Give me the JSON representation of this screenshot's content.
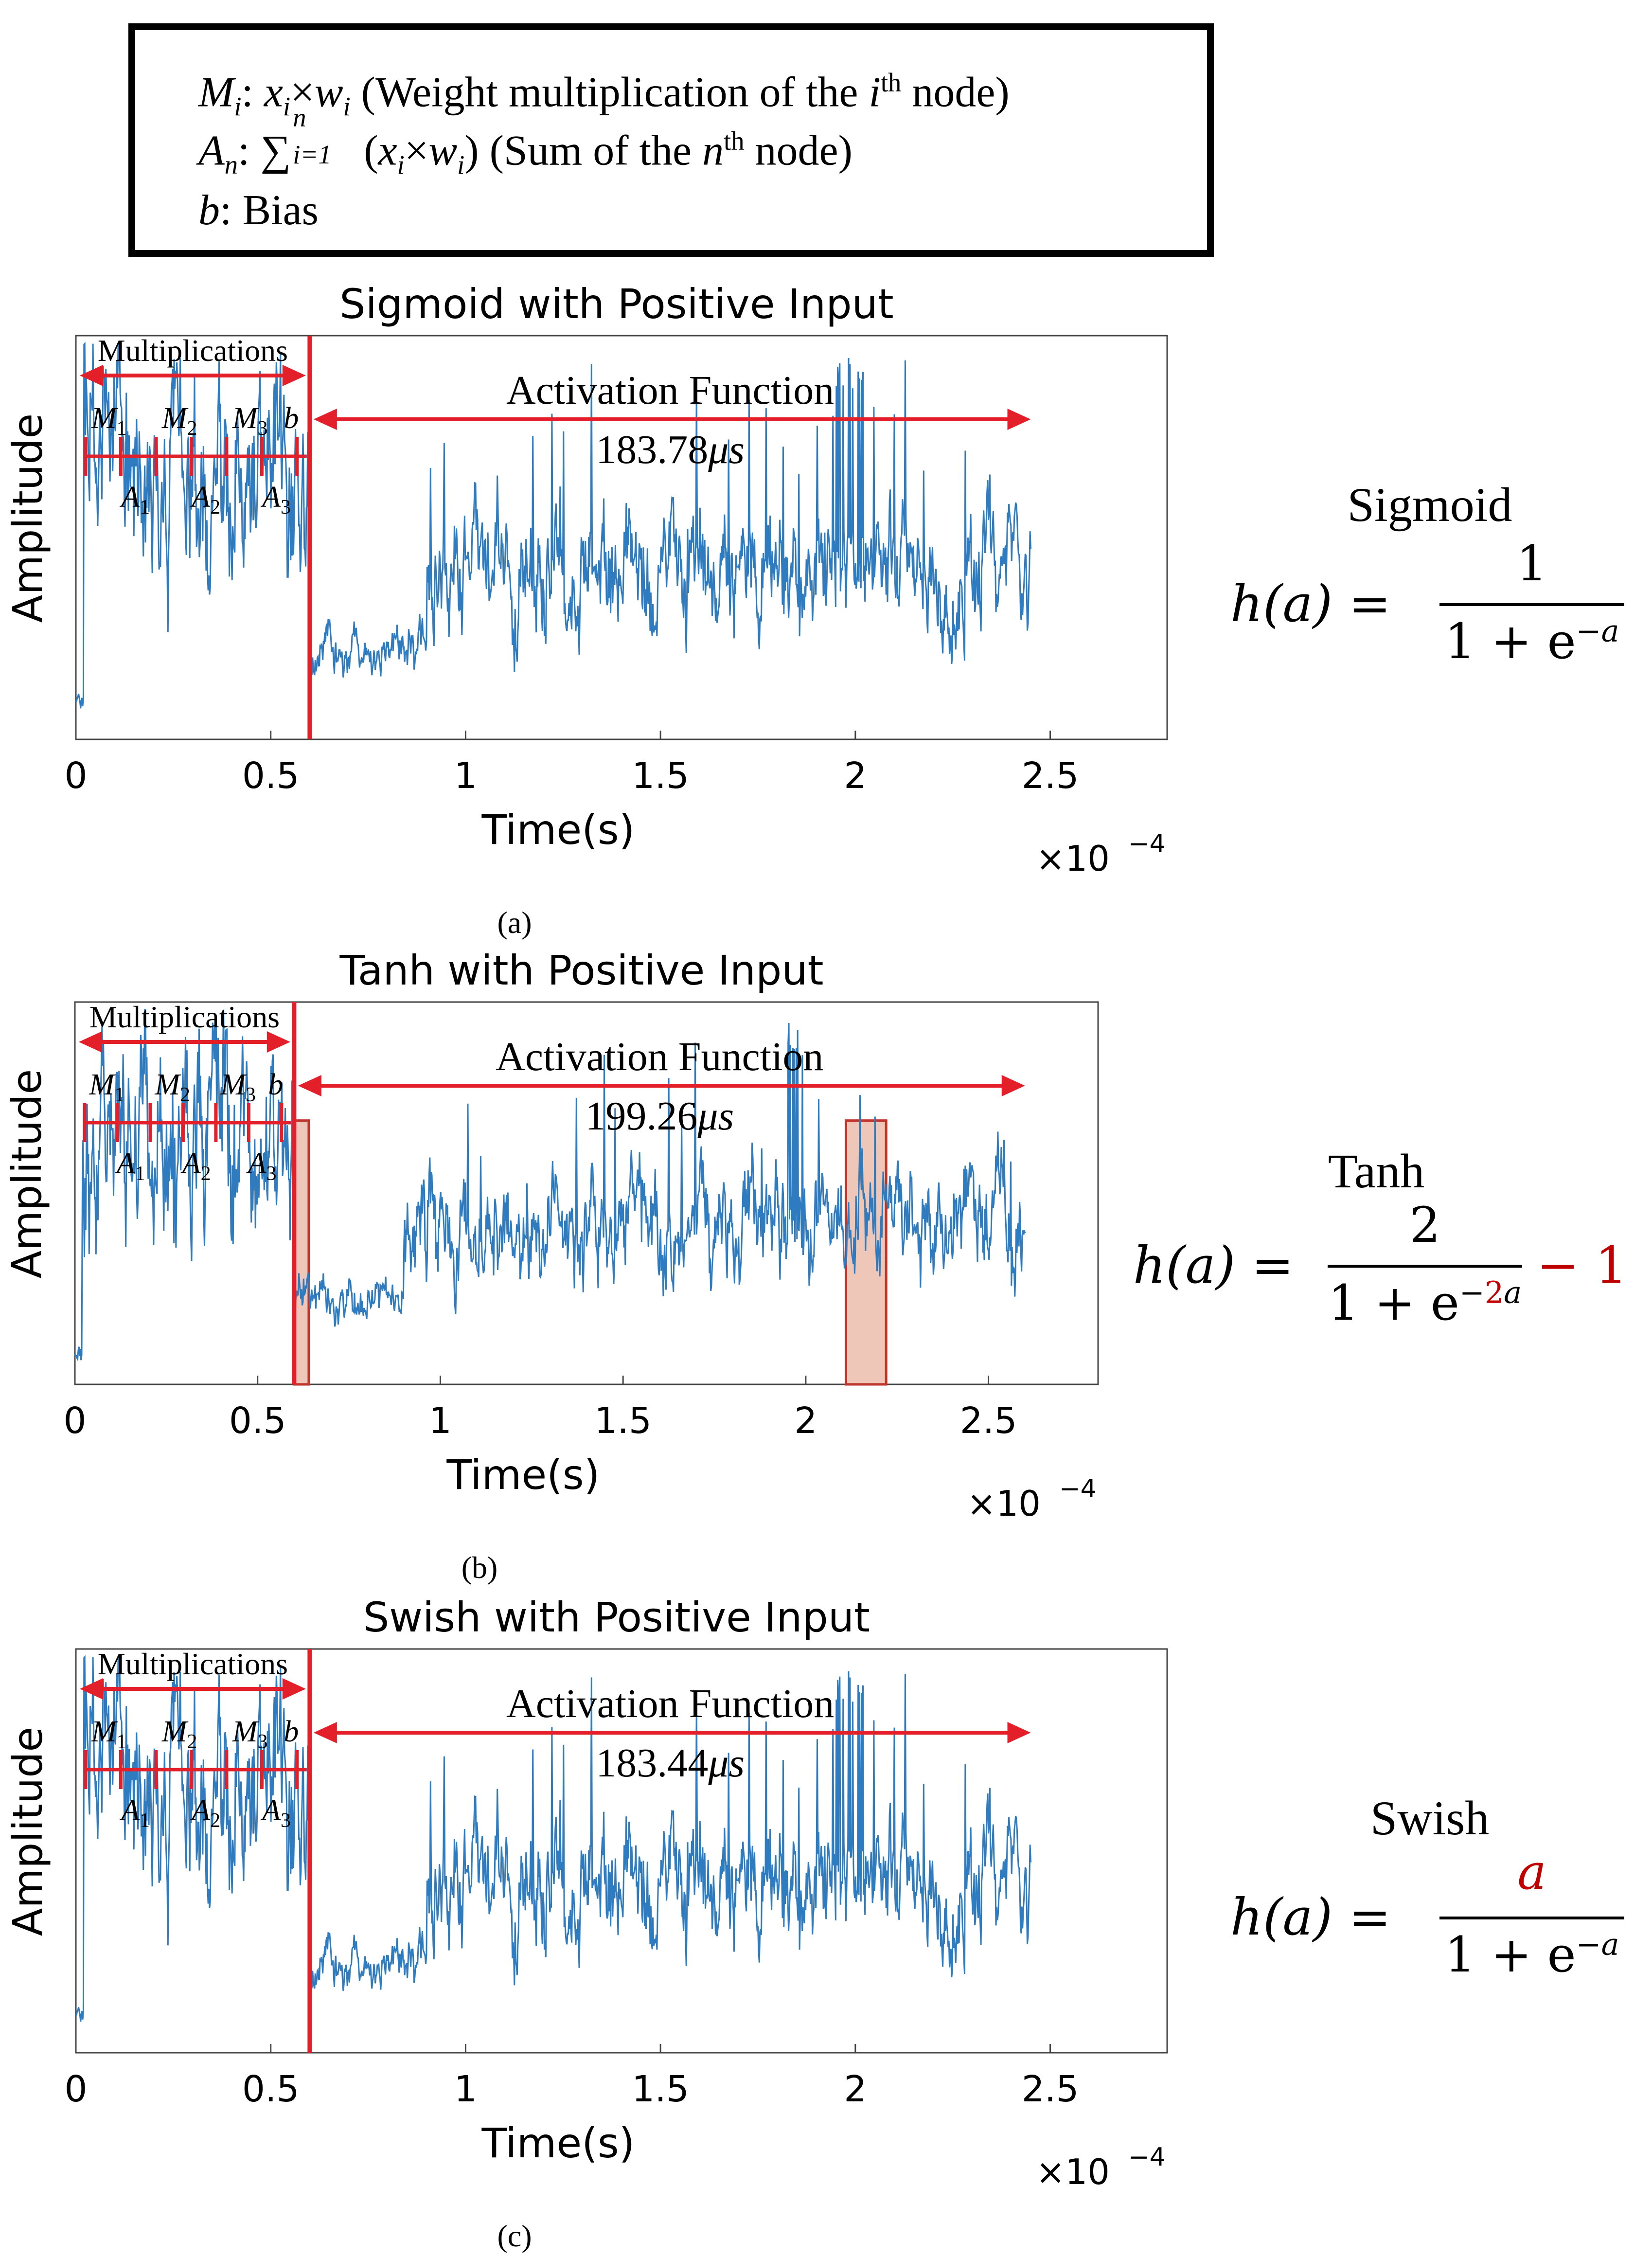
{
  "legend": {
    "line1": {
      "sym": "M",
      "sub": "i",
      "x": "x",
      "xsub": "i",
      "times": "×",
      "w": "w",
      "wsub": "i",
      "text_a": " (Weight multiplication of the ",
      "i": "i",
      "th": "th",
      "text_b": " node)"
    },
    "line2": {
      "sym": "A",
      "sub": "n",
      "sigma": "∑",
      "sigma_sub": "i=1",
      "sigma_sup": "n",
      "paren_open": "(",
      "x": "x",
      "xsub": "i",
      "times": "×",
      "w": "w",
      "wsub": "i",
      "paren_close": ")",
      "text_a": " (Sum of the ",
      "n": "n",
      "th": "th",
      "text_b": " node)"
    },
    "line3": {
      "sym": "b",
      "text": ": Bias"
    }
  },
  "panels": [
    {
      "id": "a",
      "caption": "(a)",
      "chart_data": {
        "type": "line",
        "title": "Sigmoid with Positive Input",
        "xlabel": "Time(s)",
        "ylabel": "Amplitude",
        "x_scale_label": "×10",
        "x_scale_exp": "−4",
        "xlim": [
          0,
          2.8
        ],
        "xticks": [
          "0",
          "0.5",
          "1",
          "1.5",
          "2",
          "2.5"
        ],
        "xtick_values": [
          0,
          0.5,
          1,
          1.5,
          2,
          2.5
        ],
        "signal_end": 2.45,
        "boundary": 0.6,
        "multiplications_label": "Multiplications",
        "activation_label": "Activation Function",
        "duration": "183.78",
        "duration_unit": "μs",
        "m_labels": [
          "M",
          "M",
          "M"
        ],
        "m_subs": [
          "1",
          "2",
          "3"
        ],
        "a_labels": [
          "A",
          "A",
          "A"
        ],
        "a_subs": [
          "1",
          "2",
          "3"
        ],
        "b_label": "b",
        "highlights": [],
        "seed": 11
      },
      "formula": {
        "name": "Sigmoid",
        "lhs": "h(a) =",
        "numerator": "1",
        "numerator_red": "",
        "den_base": "1 + e",
        "den_sign": "−",
        "den_coef": "",
        "den_var": "a",
        "suffix": ""
      }
    },
    {
      "id": "b",
      "caption": "(b)",
      "chart_data": {
        "type": "line",
        "title": "Tanh with Positive Input",
        "xlabel": "Time(s)",
        "ylabel": "Amplitude",
        "x_scale_label": "×10",
        "x_scale_exp": "−4",
        "xlim": [
          0,
          2.8
        ],
        "xticks": [
          "0",
          "0.5",
          "1",
          "1.5",
          "2",
          "2.5"
        ],
        "xtick_values": [
          0,
          0.5,
          1,
          1.5,
          2,
          2.5
        ],
        "signal_end": 2.6,
        "boundary": 0.6,
        "multiplications_label": "Multiplications",
        "activation_label": "Activation Function",
        "duration": "199.26",
        "duration_unit": "μs",
        "m_labels": [
          "M",
          "M",
          "M"
        ],
        "m_subs": [
          "1",
          "2",
          "3"
        ],
        "a_labels": [
          "A",
          "A",
          "A"
        ],
        "a_subs": [
          "1",
          "2",
          "3"
        ],
        "b_label": "b",
        "highlights": [
          [
            0.6,
            0.64
          ],
          [
            2.11,
            2.22
          ]
        ],
        "seed": 29
      },
      "formula": {
        "name": "Tanh",
        "lhs": "h(a) =",
        "numerator": "2",
        "numerator_red": "",
        "den_base": "1 + e",
        "den_sign": "−",
        "den_coef": "2",
        "den_var": "a",
        "suffix": "− 1"
      }
    },
    {
      "id": "c",
      "caption": "(c)",
      "chart_data": {
        "type": "line",
        "title": "Swish with Positive Input",
        "xlabel": "Time(s)",
        "ylabel": "Amplitude",
        "x_scale_label": "×10",
        "x_scale_exp": "−4",
        "xlim": [
          0,
          2.8
        ],
        "xticks": [
          "0",
          "0.5",
          "1",
          "1.5",
          "2",
          "2.5"
        ],
        "xtick_values": [
          0,
          0.5,
          1,
          1.5,
          2,
          2.5
        ],
        "signal_end": 2.45,
        "boundary": 0.6,
        "multiplications_label": "Multiplications",
        "activation_label": "Activation Function",
        "duration": "183.44",
        "duration_unit": "μs",
        "m_labels": [
          "M",
          "M",
          "M"
        ],
        "m_subs": [
          "1",
          "2",
          "3"
        ],
        "a_labels": [
          "A",
          "A",
          "A"
        ],
        "a_subs": [
          "1",
          "2",
          "3"
        ],
        "b_label": "b",
        "highlights": [],
        "seed": 11
      },
      "formula": {
        "name": "Swish",
        "lhs": "h(a) =",
        "numerator": "",
        "numerator_red": "a",
        "den_base": "1 + e",
        "den_sign": "−",
        "den_coef": "",
        "den_var": "a",
        "suffix": ""
      }
    }
  ],
  "colors": {
    "signal": "#2f7bbf",
    "annotation": "#e3202a",
    "highlight_fill": "#e8b4a0",
    "highlight_stroke": "#c0352a",
    "formula_red": "#c00000"
  }
}
